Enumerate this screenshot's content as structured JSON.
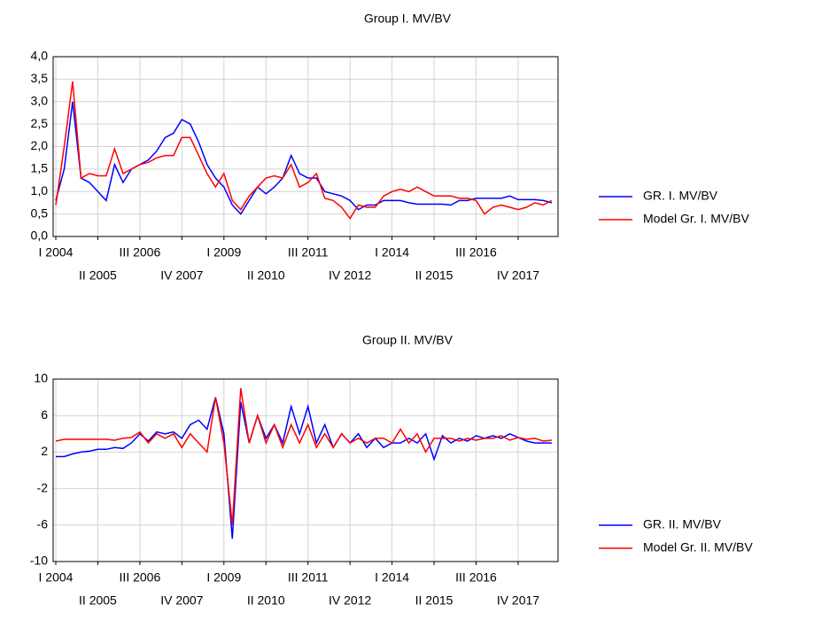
{
  "chart_data": [
    {
      "type": "line",
      "title": "Group I. MV/BV",
      "categories": [
        "I 2004",
        null,
        null,
        null,
        null,
        "II 2005",
        null,
        null,
        null,
        null,
        "III 2006",
        null,
        null,
        null,
        null,
        "IV 2007",
        null,
        null,
        null,
        null,
        "I 2009",
        null,
        null,
        null,
        null,
        "II 2010",
        null,
        null,
        null,
        null,
        "III 2011",
        null,
        null,
        null,
        null,
        "IV 2012",
        null,
        null,
        null,
        null,
        "I 2014",
        null,
        null,
        null,
        null,
        "II 2015",
        null,
        null,
        null,
        null,
        "III 2016",
        null,
        null,
        null,
        null,
        "IV 2017",
        null,
        null,
        null,
        null
      ],
      "series": [
        {
          "name": "GR. I. MV/BV",
          "color": "#0000ff",
          "values": [
            0.8,
            1.5,
            3.0,
            1.3,
            1.2,
            1.0,
            0.8,
            1.6,
            1.2,
            1.5,
            1.6,
            1.7,
            1.9,
            2.2,
            2.3,
            2.6,
            2.5,
            2.1,
            1.6,
            1.3,
            1.1,
            0.7,
            0.5,
            0.8,
            1.1,
            0.95,
            1.1,
            1.3,
            1.8,
            1.4,
            1.3,
            1.3,
            1.0,
            0.95,
            0.9,
            0.8,
            0.6,
            0.7,
            0.7,
            0.8,
            0.8,
            0.8,
            0.75,
            0.72,
            0.72,
            0.72,
            0.72,
            0.7,
            0.8,
            0.8,
            0.85,
            0.85,
            0.85,
            0.85,
            0.9,
            0.82,
            0.82,
            0.82,
            0.8,
            0.75
          ]
        },
        {
          "name": "Model Gr. I. MV/BV",
          "color": "#ff0000",
          "values": [
            0.7,
            2.0,
            3.45,
            1.3,
            1.4,
            1.35,
            1.35,
            1.95,
            1.4,
            1.5,
            1.6,
            1.65,
            1.75,
            1.8,
            1.8,
            2.2,
            2.2,
            1.8,
            1.4,
            1.1,
            1.4,
            0.8,
            0.6,
            0.9,
            1.1,
            1.3,
            1.35,
            1.3,
            1.6,
            1.1,
            1.2,
            1.4,
            0.85,
            0.8,
            0.65,
            0.4,
            0.7,
            0.65,
            0.65,
            0.9,
            1.0,
            1.05,
            1.0,
            1.1,
            1.0,
            0.9,
            0.9,
            0.9,
            0.85,
            0.85,
            0.8,
            0.5,
            0.65,
            0.7,
            0.65,
            0.6,
            0.65,
            0.75,
            0.7,
            0.8
          ]
        }
      ],
      "ylim": [
        0,
        4
      ],
      "yticks": [
        {
          "value": 0,
          "label": "0,0"
        },
        {
          "value": 0.5,
          "label": "0,5"
        },
        {
          "value": 1,
          "label": "1,0"
        },
        {
          "value": 1.5,
          "label": "1,5"
        },
        {
          "value": 2,
          "label": "2,0"
        },
        {
          "value": 2.5,
          "label": "2,5"
        },
        {
          "value": 3,
          "label": "3,0"
        },
        {
          "value": 3.5,
          "label": "3,5"
        },
        {
          "value": 4,
          "label": "4,0"
        }
      ],
      "grid": true
    },
    {
      "type": "line",
      "title": "Group II. MV/BV",
      "categories": [
        "I 2004",
        null,
        null,
        null,
        null,
        "II 2005",
        null,
        null,
        null,
        null,
        "III 2006",
        null,
        null,
        null,
        null,
        "IV 2007",
        null,
        null,
        null,
        null,
        "I 2009",
        null,
        null,
        null,
        null,
        "II 2010",
        null,
        null,
        null,
        null,
        "III 2011",
        null,
        null,
        null,
        null,
        "IV 2012",
        null,
        null,
        null,
        null,
        "I 2014",
        null,
        null,
        null,
        null,
        "II 2015",
        null,
        null,
        null,
        null,
        "III 2016",
        null,
        null,
        null,
        null,
        "IV 2017",
        null,
        null,
        null,
        null
      ],
      "series": [
        {
          "name": "GR. II. MV/BV",
          "color": "#0000ff",
          "values": [
            1.5,
            1.5,
            1.8,
            2,
            2.1,
            2.3,
            2.3,
            2.5,
            2.4,
            3,
            4,
            3.2,
            4.2,
            4,
            4.2,
            3.5,
            5,
            5.5,
            4.5,
            8,
            4,
            -7.5,
            7.5,
            3,
            6,
            3.5,
            5,
            3,
            7,
            4,
            7,
            3,
            5,
            2.5,
            4,
            3,
            4,
            2.5,
            3.5,
            2.5,
            3,
            3,
            3.5,
            3,
            4,
            1.2,
            3.8,
            3,
            3.5,
            3.2,
            3.8,
            3.5,
            3.8,
            3.5,
            4,
            3.6,
            3.2,
            3,
            3,
            3
          ]
        },
        {
          "name": "Model Gr. II. MV/BV",
          "color": "#ff0000",
          "values": [
            3.2,
            3.4,
            3.4,
            3.4,
            3.4,
            3.4,
            3.4,
            3.3,
            3.5,
            3.6,
            4.2,
            3,
            4,
            3.5,
            4,
            2.5,
            4,
            3,
            2,
            8,
            3,
            -6,
            9,
            3,
            6,
            3,
            5,
            2.5,
            5,
            3,
            5,
            2.5,
            4,
            2.5,
            4,
            3,
            3.5,
            3,
            3.5,
            3.5,
            3,
            4.5,
            3,
            4,
            2,
            3.5,
            3.5,
            3.5,
            3.2,
            3.5,
            3.3,
            3.5,
            3.5,
            3.8,
            3.3,
            3.6,
            3.4,
            3.5,
            3.2,
            3.3
          ]
        }
      ],
      "ylim": [
        -10,
        10
      ],
      "yticks": [
        -10,
        -6,
        -2,
        2,
        6,
        10
      ],
      "grid": true
    }
  ]
}
